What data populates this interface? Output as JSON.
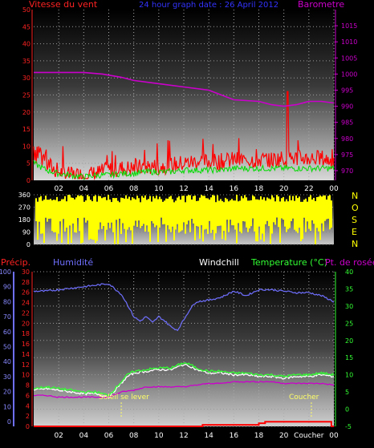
{
  "header": {
    "left_label": "Vitesse du vent",
    "center_label": "24 hour graph date : 26 April 2012",
    "right_label": "Barometre"
  },
  "bottom_header": {
    "precip": "Précip.",
    "humidity": "Humidité",
    "windchill": "Windchill",
    "temperature": "Temperature (°C)",
    "dewpoint": "Pt. de rosée"
  },
  "compass_letters": [
    "N",
    "O",
    "S",
    "E",
    "N"
  ],
  "annotations": {
    "sunrise": "Soleil se lever",
    "sunset": "Coucher"
  },
  "colors": {
    "wind": "#ff0000",
    "gust": "#00dd00",
    "barometer": "#cc00cc",
    "direction": "#ffff00",
    "humidity": "#6f6fff",
    "temperature": "#33ff33",
    "dewpoint": "#cc00cc",
    "precip": "#ff0000",
    "sunrise": "#ffff66"
  },
  "chart_data": [
    {
      "type": "line",
      "name": "wind-barometer",
      "x_ticks": [
        "02",
        "04",
        "06",
        "08",
        "10",
        "12",
        "14",
        "16",
        "18",
        "20",
        "22",
        "00"
      ],
      "ylim_left": [
        0,
        50
      ],
      "y_ticks_left": [
        "0",
        "5",
        "10",
        "15",
        "20",
        "25",
        "30",
        "35",
        "40",
        "45",
        "50"
      ],
      "ylim_right": [
        967,
        1020
      ],
      "y_ticks_right": [
        "970",
        "975",
        "980",
        "985",
        "990",
        "995",
        "1000",
        "1005",
        "1010",
        "1015"
      ],
      "series": [
        {
          "key": "wind_speed",
          "axis": "left",
          "x": [
            0,
            0.5,
            1,
            1.5,
            2,
            2.5,
            3,
            4,
            5,
            6,
            7,
            8,
            9,
            10,
            11,
            12,
            13,
            14,
            15,
            16,
            17,
            18,
            19,
            20,
            21,
            22,
            23,
            24
          ],
          "values": [
            9,
            7,
            5,
            3,
            2,
            1.5,
            1,
            1,
            1.5,
            2.5,
            3,
            3,
            3.5,
            3.5,
            4,
            4.5,
            5,
            5,
            5,
            5.5,
            5.5,
            5.5,
            5.5,
            6,
            6,
            6,
            6,
            5
          ]
        },
        {
          "key": "wind_gust",
          "axis": "left",
          "x": [
            0,
            1,
            2,
            3,
            4,
            5,
            6,
            7,
            8,
            9,
            10,
            11,
            12,
            13,
            14,
            15,
            16,
            17,
            18,
            19,
            20,
            21,
            22,
            23,
            24
          ],
          "values": [
            5,
            3,
            2,
            1.5,
            1,
            1.5,
            1.5,
            2,
            2,
            2.5,
            2.5,
            2.5,
            3,
            3,
            3,
            3,
            3.5,
            3.5,
            3.5,
            3.5,
            3.5,
            3.5,
            3.5,
            3.5,
            3.5
          ]
        },
        {
          "key": "barometer",
          "axis": "right",
          "x": [
            0,
            4,
            5.5,
            7,
            8,
            10,
            12,
            14,
            16,
            18,
            19,
            20,
            21,
            22,
            23,
            24
          ],
          "values": [
            1000.5,
            1000.5,
            1000,
            999,
            998,
            997,
            996,
            995,
            992,
            991.5,
            990.5,
            990,
            990.5,
            991.5,
            991.5,
            991
          ]
        }
      ]
    },
    {
      "type": "scatter",
      "name": "wind-direction",
      "ylim": [
        0,
        360
      ],
      "y_ticks": [
        "0",
        "90",
        "180",
        "270",
        "360"
      ],
      "description_values": {
        "dominant_range": [
          180,
          330
        ]
      }
    },
    {
      "type": "line",
      "name": "humidity-temperature",
      "x_ticks": [
        "02",
        "04",
        "06",
        "08",
        "10",
        "12",
        "14",
        "16",
        "18",
        "20",
        "Coucher",
        "00"
      ],
      "ylim_humidity": [
        0,
        100
      ],
      "y_ticks_humidity": [
        "0",
        "10",
        "20",
        "30",
        "40",
        "50",
        "60",
        "70",
        "80",
        "90",
        "100"
      ],
      "ylim_precip": [
        0,
        30
      ],
      "y_ticks_precip": [
        "0",
        "2",
        "4",
        "6",
        "8",
        "10",
        "12",
        "14",
        "16",
        "18",
        "20",
        "22",
        "24",
        "26",
        "28",
        "30"
      ],
      "ylim_temp": [
        -5,
        40
      ],
      "y_ticks_temp": [
        "-5",
        "0",
        "5",
        "10",
        "15",
        "20",
        "25",
        "30",
        "35",
        "40"
      ],
      "series": [
        {
          "key": "humidity",
          "axis": "humidity",
          "x": [
            0,
            1,
            2,
            3,
            4,
            5,
            6,
            7,
            7.5,
            8,
            8.5,
            9,
            9.5,
            10,
            10.5,
            11,
            11.5,
            12,
            12.5,
            13,
            14,
            15,
            16,
            17,
            18,
            19,
            20,
            21,
            22,
            23,
            24
          ],
          "values": [
            87,
            87,
            88,
            89,
            90,
            91,
            92,
            85,
            78,
            70,
            67,
            70,
            66,
            70,
            67,
            63,
            61,
            68,
            75,
            80,
            81,
            83,
            87,
            84,
            88,
            88,
            87,
            86,
            86,
            84,
            80
          ]
        },
        {
          "key": "temperature",
          "axis": "temp",
          "x": [
            0,
            1,
            2,
            3,
            4,
            5,
            6,
            7,
            7.5,
            8,
            9,
            10,
            11,
            12,
            12.5,
            13,
            14,
            15,
            16,
            17,
            18,
            19,
            20,
            21,
            22,
            23,
            24
          ],
          "values": [
            6,
            6.5,
            6,
            5.5,
            5,
            5,
            4,
            8,
            10,
            11,
            11.5,
            12,
            12,
            13.5,
            13,
            12,
            11,
            11,
            10.5,
            10.5,
            10,
            10,
            9.5,
            10,
            10,
            10.5,
            10
          ]
        },
        {
          "key": "windchill",
          "axis": "temp",
          "x": [
            0,
            1,
            2,
            3,
            4,
            5,
            6,
            7,
            7.5,
            8,
            9,
            10,
            11,
            12,
            12.5,
            13,
            14,
            15,
            16,
            17,
            18,
            19,
            20,
            21,
            22,
            23,
            24
          ],
          "values": [
            5.5,
            6,
            5.5,
            5,
            4.5,
            4.5,
            3.5,
            7.5,
            9.5,
            10.5,
            11,
            11.5,
            11.5,
            13,
            12.5,
            11.5,
            10.5,
            10.5,
            10,
            10,
            9.5,
            9.5,
            9,
            9.5,
            9.5,
            10,
            9.5
          ]
        },
        {
          "key": "dewpoint",
          "axis": "temp",
          "x": [
            0,
            1,
            2,
            3,
            4,
            5,
            6,
            7,
            8,
            9,
            10,
            11,
            12,
            13,
            14,
            15,
            16,
            17,
            18,
            19,
            20,
            21,
            22,
            23,
            24
          ],
          "values": [
            4,
            4,
            3.5,
            3.5,
            3.5,
            3.5,
            3.5,
            5,
            5.5,
            6.5,
            6.5,
            6.5,
            6.5,
            7,
            7.5,
            7.5,
            8,
            8,
            8,
            8,
            7.5,
            7.5,
            7.5,
            7.5,
            7
          ]
        },
        {
          "key": "precip",
          "axis": "precip",
          "x": [
            0,
            13.5,
            13.5,
            18,
            18,
            18.5,
            18.5,
            23.8,
            23.8,
            24
          ],
          "values": [
            0,
            0,
            0.3,
            0.3,
            0.6,
            0.6,
            0.9,
            0.9,
            0,
            0
          ]
        }
      ],
      "markers": {
        "sunrise_hour": 7,
        "sunset_hour": 22.2
      }
    }
  ]
}
